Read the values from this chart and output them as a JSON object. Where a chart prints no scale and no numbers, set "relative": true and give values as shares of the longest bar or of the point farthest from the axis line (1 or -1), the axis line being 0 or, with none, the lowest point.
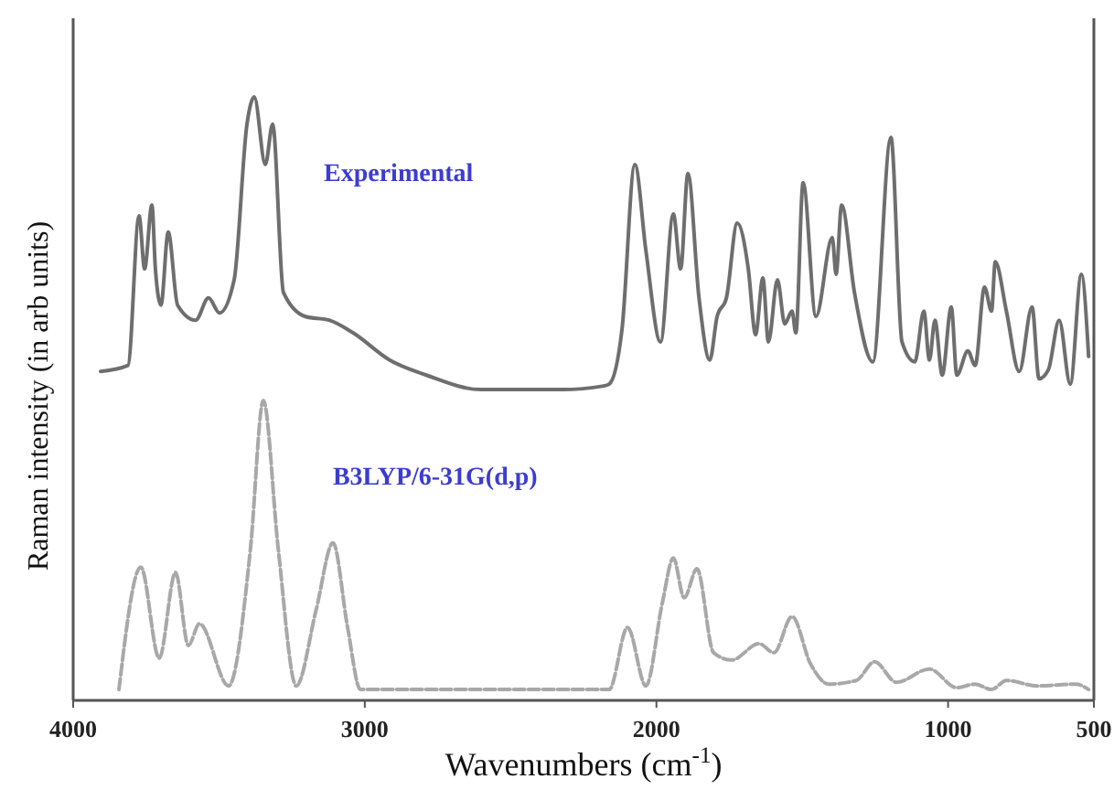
{
  "chart_data": {
    "type": "line",
    "relative": true,
    "xlabel": "Wavenumbers (cm$^{-1}$)",
    "ylabel": "Raman intensity (in arb units)",
    "xlim": [
      4000,
      500
    ],
    "xticks": [
      4000,
      3000,
      2000,
      1000,
      500
    ],
    "tick_labels": "x",
    "grid": false,
    "legend": false,
    "marker": "none",
    "series": [
      {
        "name": "Experimental",
        "color": "#6e6e6e",
        "line_style": "solid",
        "x": [
          3906,
          3812,
          3774,
          3755,
          3730,
          3718,
          3699,
          3674,
          3642,
          3580,
          3536,
          3498,
          3448,
          3404,
          3379,
          3341,
          3316,
          3279,
          3203,
          3122,
          3040,
          2915,
          2789,
          2601,
          2325,
          2181,
          2162,
          2118,
          2074,
          2036,
          1986,
          1942,
          1917,
          1892,
          1854,
          1817,
          1792,
          1760,
          1723,
          1685,
          1660,
          1635,
          1616,
          1585,
          1560,
          1535,
          1522,
          1497,
          1453,
          1397,
          1384,
          1365,
          1321,
          1258,
          1196,
          1158,
          1114,
          1083,
          1064,
          1045,
          1020,
          989,
          970,
          932,
          907,
          875,
          851,
          838,
          800,
          756,
          712,
          688,
          656,
          619,
          581,
          543,
          518
        ],
        "values": [
          0.545,
          0.555,
          0.803,
          0.715,
          0.821,
          0.715,
          0.655,
          0.776,
          0.655,
          0.63,
          0.667,
          0.642,
          0.697,
          0.955,
          1,
          0.888,
          0.955,
          0.676,
          0.636,
          0.63,
          0.609,
          0.564,
          0.539,
          0.515,
          0.515,
          0.521,
          0.524,
          0.615,
          0.888,
          0.745,
          0.594,
          0.806,
          0.715,
          0.873,
          0.667,
          0.564,
          0.636,
          0.667,
          0.791,
          0.715,
          0.606,
          0.7,
          0.594,
          0.697,
          0.624,
          0.645,
          0.609,
          0.858,
          0.636,
          0.767,
          0.706,
          0.821,
          0.676,
          0.561,
          0.933,
          0.594,
          0.561,
          0.645,
          0.564,
          0.63,
          0.539,
          0.652,
          0.539,
          0.579,
          0.555,
          0.685,
          0.645,
          0.727,
          0.645,
          0.545,
          0.652,
          0.533,
          0.548,
          0.63,
          0.524,
          0.706,
          0.57
        ]
      },
      {
        "name": "B3LYP/6-31G(d,p)",
        "color": "#a8a8a8",
        "line_style": "dashed",
        "x": [
          3843,
          3768,
          3705,
          3649,
          3605,
          3567,
          3467,
          3392,
          3348,
          3297,
          3235,
          3166,
          3109,
          3059,
          3015,
          2181,
          2162,
          2099,
          2036,
          1980,
          1942,
          1905,
          1861,
          1804,
          1742,
          1648,
          1597,
          1535,
          1472,
          1409,
          1315,
          1252,
          1177,
          1064,
          970,
          907,
          851,
          800,
          694,
          562,
          518
        ],
        "values": [
          0.018,
          0.221,
          0.07,
          0.212,
          0.091,
          0.127,
          0.024,
          0.252,
          0.497,
          0.252,
          0.024,
          0.152,
          0.261,
          0.121,
          0.018,
          0.018,
          0.018,
          0.121,
          0.024,
          0.161,
          0.236,
          0.17,
          0.218,
          0.079,
          0.067,
          0.094,
          0.079,
          0.139,
          0.061,
          0.027,
          0.033,
          0.064,
          0.03,
          0.052,
          0.021,
          0.027,
          0.018,
          0.033,
          0.024,
          0.027,
          0.018
        ]
      }
    ]
  }
}
